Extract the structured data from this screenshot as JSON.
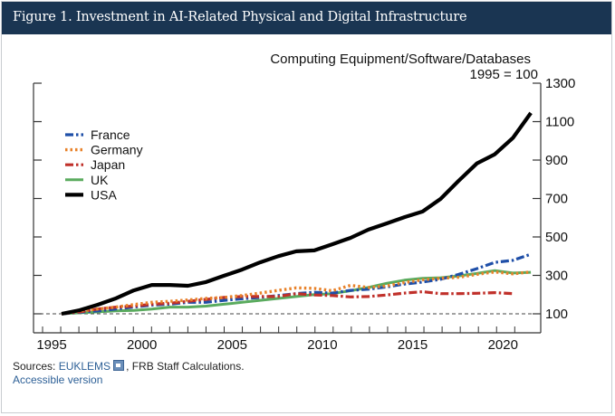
{
  "header": {
    "title": "Figure 1. Investment in AI-Related Physical and Digital Infrastructure"
  },
  "chart_data": {
    "type": "line",
    "title": "Computing Equipment/Software/Databases",
    "subtitle": "1995 = 100",
    "xlabel": "",
    "ylabel": "",
    "xlim": [
      1995,
      2022
    ],
    "ylim": [
      0,
      1300
    ],
    "x_ticks": [
      1995,
      2000,
      2005,
      2010,
      2015,
      2020
    ],
    "x_tick_labels": [
      "1995",
      "2000",
      "2005",
      "2010",
      "2015",
      "2020"
    ],
    "y_ticks": [
      100,
      300,
      500,
      700,
      900,
      1100,
      1300
    ],
    "y_tick_labels": [
      "100",
      "300",
      "500",
      "700",
      "900",
      "1100",
      "1300"
    ],
    "y_axis_side": "right",
    "reference_line": {
      "value": 100,
      "style": "dashed"
    },
    "grid": false,
    "legend_position": "top-left",
    "series": [
      {
        "name": "France",
        "color": "#1f4fa8",
        "style": "dash-dot",
        "x": [
          1995,
          1996,
          1997,
          1998,
          1999,
          2000,
          2001,
          2002,
          2003,
          2004,
          2005,
          2006,
          2007,
          2008,
          2009,
          2010,
          2011,
          2012,
          2013,
          2014,
          2015,
          2016,
          2017,
          2018,
          2019,
          2020,
          2021
        ],
        "values": [
          100,
          108,
          115,
          125,
          135,
          145,
          150,
          160,
          160,
          170,
          178,
          185,
          195,
          205,
          212,
          208,
          222,
          228,
          240,
          255,
          265,
          280,
          305,
          335,
          368,
          378,
          410
        ]
      },
      {
        "name": "Germany",
        "color": "#e8822a",
        "style": "dotted",
        "x": [
          1995,
          1996,
          1997,
          1998,
          1999,
          2000,
          2001,
          2002,
          2003,
          2004,
          2005,
          2006,
          2007,
          2008,
          2009,
          2010,
          2011,
          2012,
          2013,
          2014,
          2015,
          2016,
          2017,
          2018,
          2019,
          2020,
          2021
        ],
        "values": [
          100,
          115,
          125,
          135,
          148,
          160,
          165,
          172,
          180,
          185,
          195,
          208,
          222,
          235,
          232,
          220,
          248,
          237,
          245,
          263,
          277,
          285,
          290,
          305,
          318,
          308,
          318
        ]
      },
      {
        "name": "Japan",
        "color": "#c0302a",
        "style": "dash-dot",
        "x": [
          1995,
          1996,
          1997,
          1998,
          1999,
          2000,
          2001,
          2002,
          2003,
          2004,
          2005,
          2006,
          2007,
          2008,
          2009,
          2010,
          2011,
          2012,
          2013,
          2014,
          2015,
          2016,
          2017,
          2018,
          2019,
          2020
        ],
        "values": [
          100,
          110,
          125,
          135,
          140,
          150,
          155,
          165,
          175,
          185,
          190,
          190,
          190,
          205,
          198,
          195,
          188,
          190,
          198,
          208,
          215,
          205,
          205,
          207,
          210,
          205
        ]
      },
      {
        "name": "UK",
        "color": "#5aab5e",
        "style": "solid",
        "x": [
          1995,
          1996,
          1997,
          1998,
          1999,
          2000,
          2001,
          2002,
          2003,
          2004,
          2005,
          2006,
          2007,
          2008,
          2009,
          2010,
          2011,
          2012,
          2013,
          2014,
          2015,
          2016,
          2017,
          2018,
          2019,
          2020,
          2021
        ],
        "values": [
          100,
          105,
          110,
          115,
          118,
          125,
          135,
          135,
          140,
          150,
          160,
          170,
          180,
          190,
          200,
          205,
          220,
          237,
          258,
          275,
          285,
          288,
          297,
          310,
          325,
          312,
          316
        ]
      },
      {
        "name": "USA",
        "color": "#000000",
        "style": "solid-thick",
        "x": [
          1995,
          1996,
          1997,
          1998,
          1999,
          2000,
          2001,
          2002,
          2003,
          2004,
          2005,
          2006,
          2007,
          2008,
          2009,
          2010,
          2011,
          2012,
          2013,
          2014,
          2015,
          2016,
          2017,
          2018,
          2019,
          2020,
          2021
        ],
        "values": [
          100,
          119,
          147,
          180,
          222,
          250,
          250,
          246,
          265,
          298,
          330,
          368,
          400,
          425,
          430,
          462,
          495,
          538,
          570,
          603,
          632,
          698,
          792,
          882,
          930,
          1015,
          1145
        ]
      }
    ]
  },
  "footer": {
    "sources_prefix": "Sources: ",
    "sources_link": "EUKLEMS",
    "external_link_icon": "external-link-icon",
    "sources_suffix": ", FRB Staff Calculations.",
    "accessible_link": "Accessible version"
  }
}
